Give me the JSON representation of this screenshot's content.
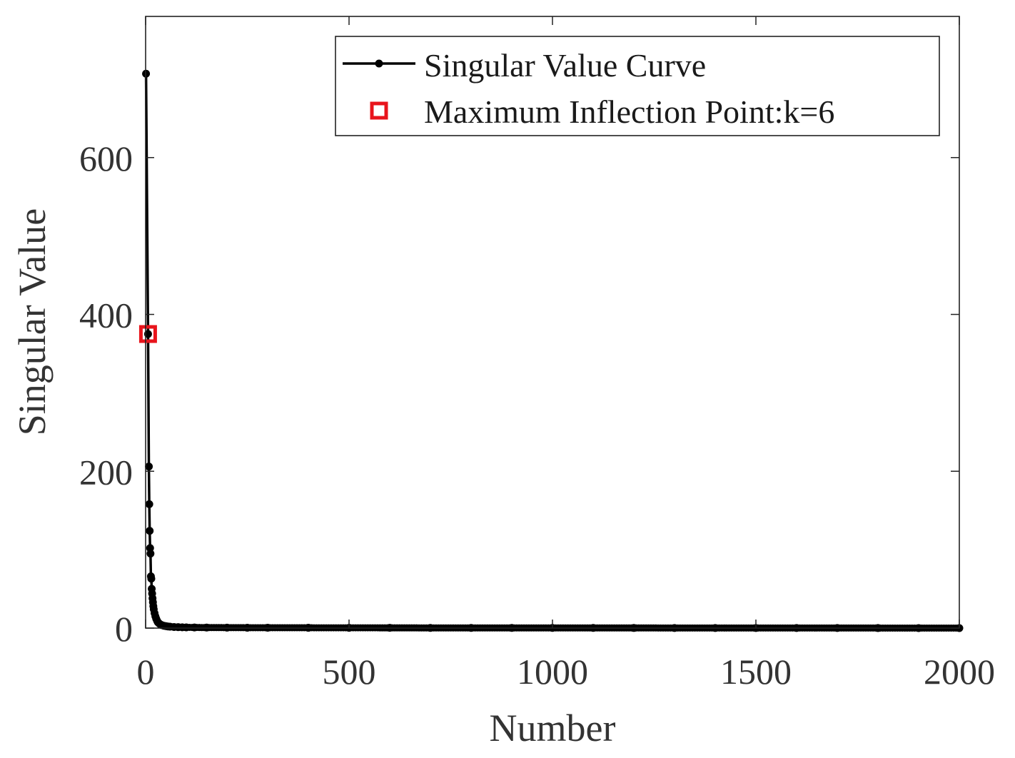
{
  "chart_data": {
    "type": "line",
    "xlabel": "Number",
    "ylabel": "Singular Value",
    "xlim": [
      0,
      2000
    ],
    "ylim": [
      0,
      780
    ],
    "x_ticks": [
      0,
      500,
      1000,
      1500,
      2000
    ],
    "y_ticks": [
      0,
      200,
      400,
      600
    ],
    "x_tick_labels": [
      "0",
      "500",
      "1000",
      "1500",
      "2000"
    ],
    "y_tick_labels": [
      "0",
      "200",
      "400",
      "600"
    ],
    "grid": false,
    "legend_position": "top-right",
    "series": [
      {
        "name": "Singular Value Curve",
        "color": "#000000",
        "marker": "dot",
        "x": [
          1,
          6,
          8,
          9,
          10,
          11,
          12,
          13,
          14,
          15,
          16,
          17,
          18,
          19,
          20,
          22,
          24,
          26,
          28,
          30,
          33,
          36,
          40,
          45,
          50,
          55,
          60,
          70,
          80,
          90,
          100,
          120,
          150,
          200,
          250,
          300,
          400,
          500,
          600,
          700,
          800,
          900,
          1000,
          1100,
          1200,
          1300,
          1400,
          1500,
          1600,
          1700,
          1800,
          1900,
          2000
        ],
        "y": [
          707,
          375,
          206,
          158,
          124,
          102,
          95,
          66,
          63,
          50,
          44,
          38,
          33,
          28,
          24,
          19,
          15,
          12,
          9.5,
          7.5,
          6,
          4.8,
          3.8,
          3,
          2.5,
          2.1,
          1.8,
          1.4,
          1.2,
          1.0,
          0.9,
          0.8,
          0.7,
          0.6,
          0.5,
          0.45,
          0.4,
          0.35,
          0.3,
          0.28,
          0.26,
          0.24,
          0.22,
          0.2,
          0.18,
          0.16,
          0.14,
          0.12,
          0.1,
          0.08,
          0.06,
          0.04,
          0.02
        ]
      },
      {
        "name": "Maximum Inflection Point:k=6",
        "color": "#e8141c",
        "marker": "square",
        "x": [
          6
        ],
        "y": [
          375
        ]
      }
    ]
  }
}
